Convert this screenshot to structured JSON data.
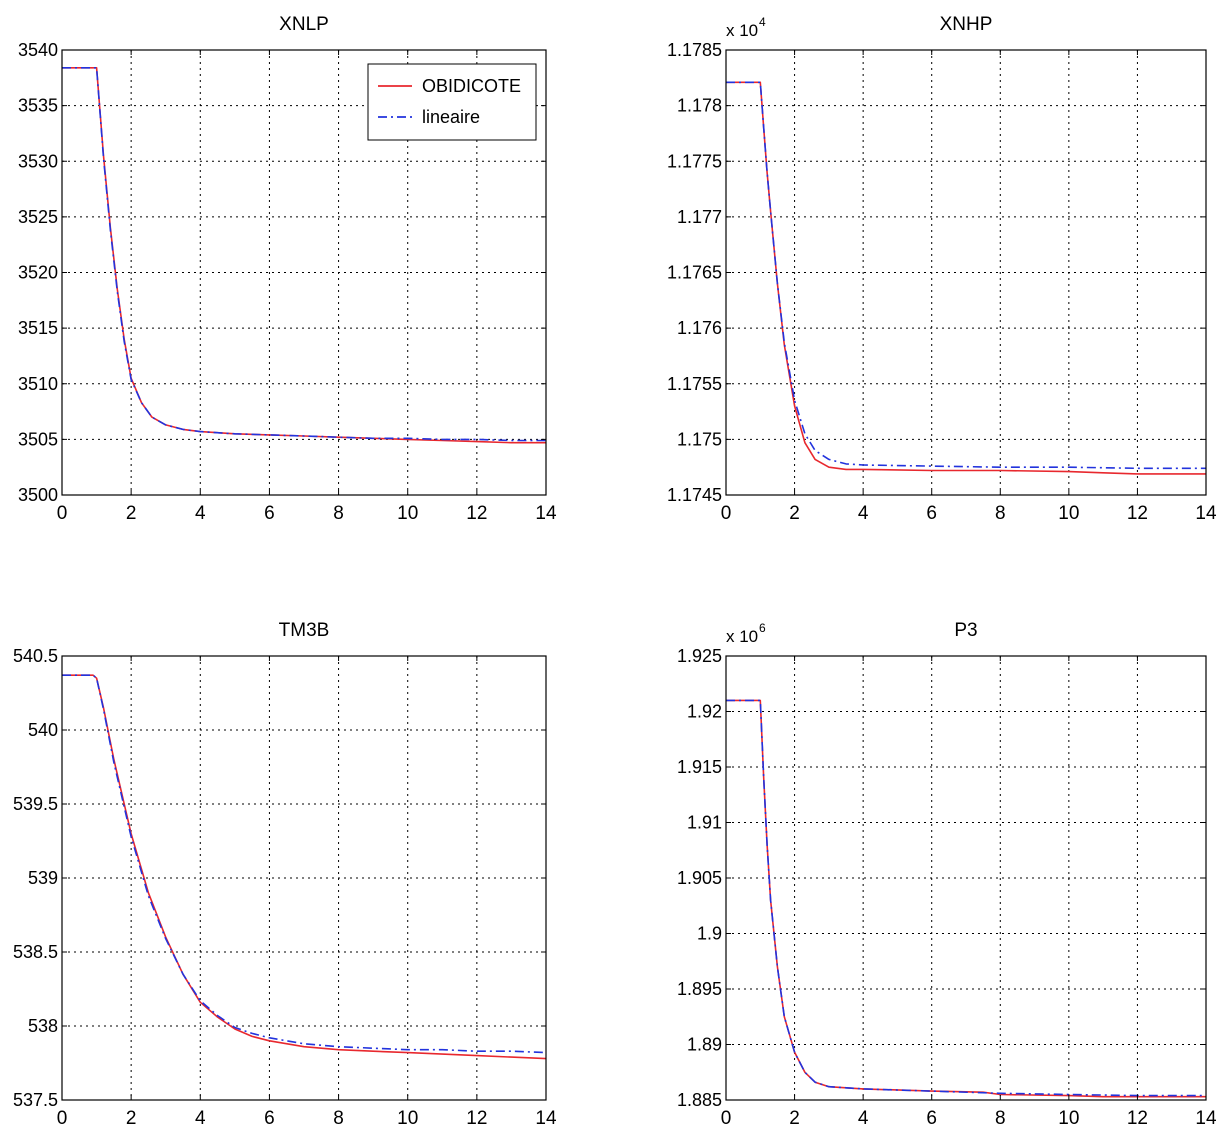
{
  "chart_data": [
    {
      "type": "line",
      "title": "XNLP",
      "xlabel": "",
      "ylabel": "",
      "xlim": [
        0,
        14
      ],
      "ylim": [
        3500,
        3540
      ],
      "xticks": [
        0,
        2,
        4,
        6,
        8,
        10,
        12,
        14
      ],
      "yticks": [
        3500,
        3505,
        3510,
        3515,
        3520,
        3525,
        3530,
        3535,
        3540
      ],
      "ytick_labels": [
        "3500",
        "3505",
        "3510",
        "3515",
        "3520",
        "3525",
        "3530",
        "3535",
        "3540"
      ],
      "exponent_label": "",
      "grid": true,
      "legend": {
        "position": "top-right",
        "entries": [
          "OBIDICOTE",
          "lineaire"
        ]
      },
      "series": [
        {
          "name": "OBIDICOTE",
          "color": "#e8282e",
          "style": "solid",
          "x": [
            0,
            1,
            1.2,
            1.4,
            1.6,
            1.8,
            2,
            2.3,
            2.6,
            3,
            3.5,
            4,
            5,
            6,
            7,
            8,
            9,
            10,
            11,
            12,
            13,
            14
          ],
          "y": [
            3538.4,
            3538.4,
            3530.5,
            3524.0,
            3518.5,
            3514.0,
            3510.5,
            3508.3,
            3507.0,
            3506.3,
            3505.9,
            3505.7,
            3505.5,
            3505.4,
            3505.3,
            3505.2,
            3505.1,
            3505.0,
            3504.9,
            3504.8,
            3504.7,
            3504.7
          ]
        },
        {
          "name": "lineaire",
          "color": "#2233dd",
          "style": "dashdot",
          "x": [
            0,
            1,
            1.2,
            1.4,
            1.6,
            1.8,
            2,
            2.3,
            2.6,
            3,
            3.5,
            4,
            5,
            6,
            7,
            8,
            9,
            10,
            11,
            12,
            13,
            14
          ],
          "y": [
            3538.4,
            3538.4,
            3530.3,
            3523.8,
            3518.3,
            3513.8,
            3510.4,
            3508.3,
            3507.0,
            3506.3,
            3505.9,
            3505.7,
            3505.5,
            3505.4,
            3505.3,
            3505.2,
            3505.1,
            3505.1,
            3505.0,
            3505.0,
            3504.9,
            3504.9
          ]
        }
      ]
    },
    {
      "type": "line",
      "title": "XNHP",
      "xlabel": "",
      "ylabel": "",
      "xlim": [
        0,
        14
      ],
      "ylim": [
        1.1745,
        1.1785
      ],
      "xticks": [
        0,
        2,
        4,
        6,
        8,
        10,
        12,
        14
      ],
      "yticks": [
        1.1745,
        1.175,
        1.1755,
        1.176,
        1.1765,
        1.177,
        1.1775,
        1.178,
        1.1785
      ],
      "ytick_labels": [
        "1.1745",
        "1.175",
        "1.1755",
        "1.176",
        "1.1765",
        "1.177",
        "1.1775",
        "1.178",
        "1.1785"
      ],
      "exponent_label": "x 10",
      "exponent_power": "4",
      "grid": true,
      "legend": null,
      "series": [
        {
          "color": "#e8282e",
          "style": "solid",
          "x": [
            0,
            1,
            1.1,
            1.2,
            1.3,
            1.5,
            1.7,
            2,
            2.3,
            2.6,
            3,
            3.5,
            4,
            6,
            8,
            10,
            11,
            12,
            14
          ],
          "y": [
            1.17821,
            1.17821,
            1.1778,
            1.1774,
            1.17705,
            1.1764,
            1.17585,
            1.1753,
            1.17497,
            1.17482,
            1.17475,
            1.17473,
            1.17473,
            1.17472,
            1.17472,
            1.17471,
            1.1747,
            1.17469,
            1.17469
          ]
        },
        {
          "color": "#2233dd",
          "style": "dashdot",
          "x": [
            0,
            1,
            1.1,
            1.2,
            1.3,
            1.5,
            1.7,
            2,
            2.3,
            2.6,
            3,
            3.5,
            4,
            6,
            8,
            10,
            12,
            14
          ],
          "y": [
            1.17821,
            1.17821,
            1.1778,
            1.1774,
            1.17705,
            1.1764,
            1.17587,
            1.17535,
            1.17505,
            1.1749,
            1.17482,
            1.17478,
            1.17477,
            1.17476,
            1.17475,
            1.17475,
            1.17474,
            1.17474
          ]
        }
      ]
    },
    {
      "type": "line",
      "title": "TM3B",
      "xlabel": "",
      "ylabel": "",
      "xlim": [
        0,
        14
      ],
      "ylim": [
        537.5,
        540.5
      ],
      "xticks": [
        0,
        2,
        4,
        6,
        8,
        10,
        12,
        14
      ],
      "yticks": [
        537.5,
        538,
        538.5,
        539,
        539.5,
        540,
        540.5
      ],
      "ytick_labels": [
        "537.5",
        "538",
        "538.5",
        "539",
        "539.5",
        "540",
        "540.5"
      ],
      "exponent_label": "",
      "grid": true,
      "legend": null,
      "series": [
        {
          "color": "#e8282e",
          "style": "solid",
          "x": [
            0,
            0.9,
            1.0,
            1.2,
            1.5,
            2,
            2.5,
            3,
            3.5,
            4,
            4.5,
            5,
            5.5,
            6,
            7,
            8,
            9,
            10,
            11,
            12,
            13,
            14
          ],
          "y": [
            540.37,
            540.37,
            540.35,
            540.15,
            539.8,
            539.3,
            538.9,
            538.6,
            538.35,
            538.16,
            538.06,
            537.98,
            537.93,
            537.9,
            537.86,
            537.84,
            537.83,
            537.82,
            537.81,
            537.8,
            537.79,
            537.78
          ]
        },
        {
          "color": "#2233dd",
          "style": "dashdot",
          "x": [
            0,
            0.9,
            1.0,
            1.2,
            1.5,
            2,
            2.5,
            3,
            3.5,
            4,
            4.5,
            5,
            5.5,
            6,
            7,
            8,
            9,
            10,
            11,
            12,
            13,
            14
          ],
          "y": [
            540.37,
            540.37,
            540.35,
            540.14,
            539.78,
            539.28,
            538.88,
            538.59,
            538.35,
            538.17,
            538.07,
            537.99,
            537.95,
            537.92,
            537.88,
            537.86,
            537.85,
            537.84,
            537.84,
            537.83,
            537.83,
            537.82
          ]
        }
      ]
    },
    {
      "type": "line",
      "title": "P3",
      "xlabel": "",
      "ylabel": "",
      "xlim": [
        0,
        14
      ],
      "ylim": [
        1.885,
        1.925
      ],
      "xticks": [
        0,
        2,
        4,
        6,
        8,
        10,
        12,
        14
      ],
      "yticks": [
        1.885,
        1.89,
        1.895,
        1.9,
        1.905,
        1.91,
        1.915,
        1.92,
        1.925
      ],
      "ytick_labels": [
        "1.885",
        "1.89",
        "1.895",
        "1.9",
        "1.905",
        "1.91",
        "1.915",
        "1.92",
        "1.925"
      ],
      "exponent_label": "x 10",
      "exponent_power": "6",
      "grid": true,
      "legend": null,
      "series": [
        {
          "color": "#e8282e",
          "style": "solid",
          "x": [
            0,
            1,
            1.1,
            1.2,
            1.3,
            1.5,
            1.7,
            2,
            2.3,
            2.6,
            3,
            3.5,
            4,
            6,
            7.5,
            8,
            10,
            11,
            14
          ],
          "y": [
            1.921,
            1.921,
            1.914,
            1.908,
            1.903,
            1.897,
            1.8925,
            1.8893,
            1.8875,
            1.8866,
            1.8862,
            1.8861,
            1.886,
            1.8858,
            1.8857,
            1.8855,
            1.8854,
            1.8853,
            1.8853
          ]
        },
        {
          "color": "#2233dd",
          "style": "dashdot",
          "x": [
            0,
            1,
            1.1,
            1.2,
            1.3,
            1.5,
            1.7,
            2,
            2.3,
            2.6,
            3,
            3.5,
            4,
            6,
            8,
            10,
            12,
            14
          ],
          "y": [
            1.921,
            1.921,
            1.914,
            1.908,
            1.903,
            1.897,
            1.8925,
            1.8893,
            1.8875,
            1.8866,
            1.8862,
            1.8861,
            1.886,
            1.8858,
            1.8856,
            1.8855,
            1.8854,
            1.8854
          ]
        }
      ]
    }
  ]
}
